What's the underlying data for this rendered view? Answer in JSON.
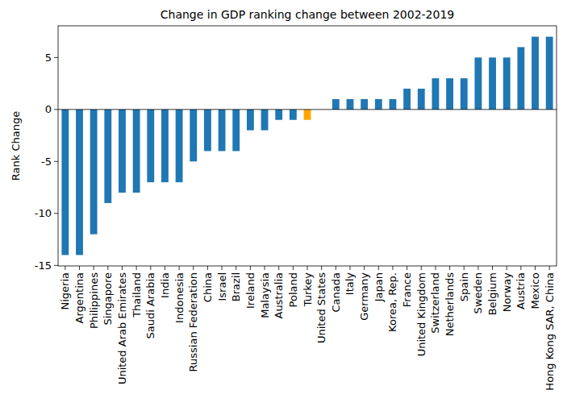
{
  "chart_data": {
    "type": "bar",
    "title": "Change in GDP ranking change between 2002-2019",
    "y_label": "Rank Change",
    "categories": [
      "Nigeria",
      "Argentina",
      "Philippines",
      "Singapore",
      "United Arab Emirates",
      "Thailand",
      "Saudi Arabia",
      "India",
      "Indonesia",
      "Russian Federation",
      "China",
      "Israel",
      "Brazil",
      "Ireland",
      "Malaysia",
      "Australia",
      "Poland",
      "Turkey",
      "United States",
      "Canada",
      "Italy",
      "Germany",
      "Japan",
      "Korea, Rep.",
      "France",
      "United Kingdom",
      "Switzerland",
      "Netherlands",
      "Spain",
      "Sweden",
      "Belgium",
      "Norway",
      "Austria",
      "Mexico",
      "Hong Kong SAR, China"
    ],
    "values": [
      -14,
      -14,
      -12,
      -9,
      -8,
      -8,
      -7,
      -7,
      -7,
      -5,
      -4,
      -4,
      -4,
      -2,
      -2,
      -1,
      -1,
      -1,
      0,
      1,
      1,
      1,
      1,
      1,
      2,
      2,
      3,
      3,
      3,
      5,
      5,
      5,
      6,
      7,
      7
    ],
    "colors": [
      "#1f77b4",
      "#1f77b4",
      "#1f77b4",
      "#1f77b4",
      "#1f77b4",
      "#1f77b4",
      "#1f77b4",
      "#1f77b4",
      "#1f77b4",
      "#1f77b4",
      "#1f77b4",
      "#1f77b4",
      "#1f77b4",
      "#1f77b4",
      "#1f77b4",
      "#1f77b4",
      "#1f77b4",
      "#ffa500",
      "#1f77b4",
      "#1f77b4",
      "#1f77b4",
      "#1f77b4",
      "#1f77b4",
      "#1f77b4",
      "#1f77b4",
      "#1f77b4",
      "#1f77b4",
      "#1f77b4",
      "#1f77b4",
      "#1f77b4",
      "#1f77b4",
      "#1f77b4",
      "#1f77b4",
      "#1f77b4",
      "#1f77b4"
    ],
    "ylim": [
      -15.05,
      8.05
    ],
    "yticks": [
      -15,
      -10,
      -5,
      0,
      5
    ],
    "grid": false
  }
}
